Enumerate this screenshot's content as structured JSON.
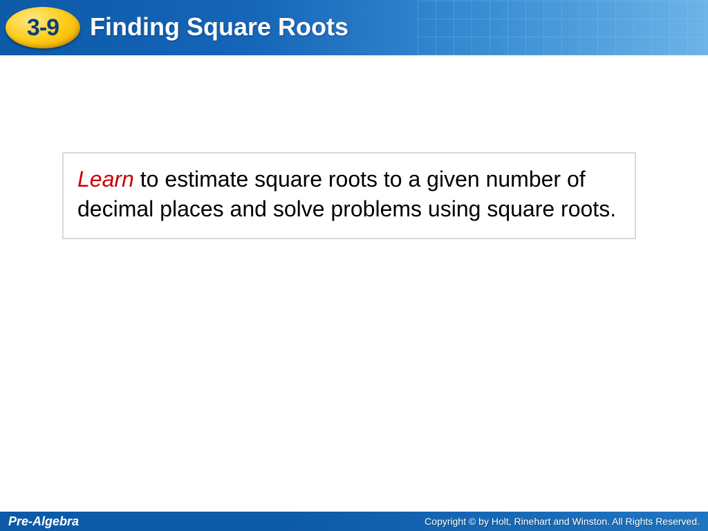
{
  "header": {
    "lesson_number": "3-9",
    "title": "Finding Square Roots",
    "badge_bg_color": "#fbc912",
    "badge_text_color": "#0a3f78",
    "bar_gradient_start": "#0d5aa8",
    "bar_gradient_end": "#6db3e8",
    "title_color": "#ffffff",
    "title_fontsize": 36
  },
  "content": {
    "learn_label": "Learn",
    "learn_color": "#cc0000",
    "body_text": " to estimate square roots to a given number of decimal places and solve problems using square roots.",
    "body_color": "#000000",
    "body_fontsize": 32,
    "box_border_color": "#d8d8d8",
    "box_bg_color": "#ffffff"
  },
  "footer": {
    "course_name": "Pre-Algebra",
    "copyright": "Copyright © by Holt, Rinehart and Winston. All Rights Reserved.",
    "bar_color": "#0d5aa8",
    "text_color": "#ffffff"
  }
}
